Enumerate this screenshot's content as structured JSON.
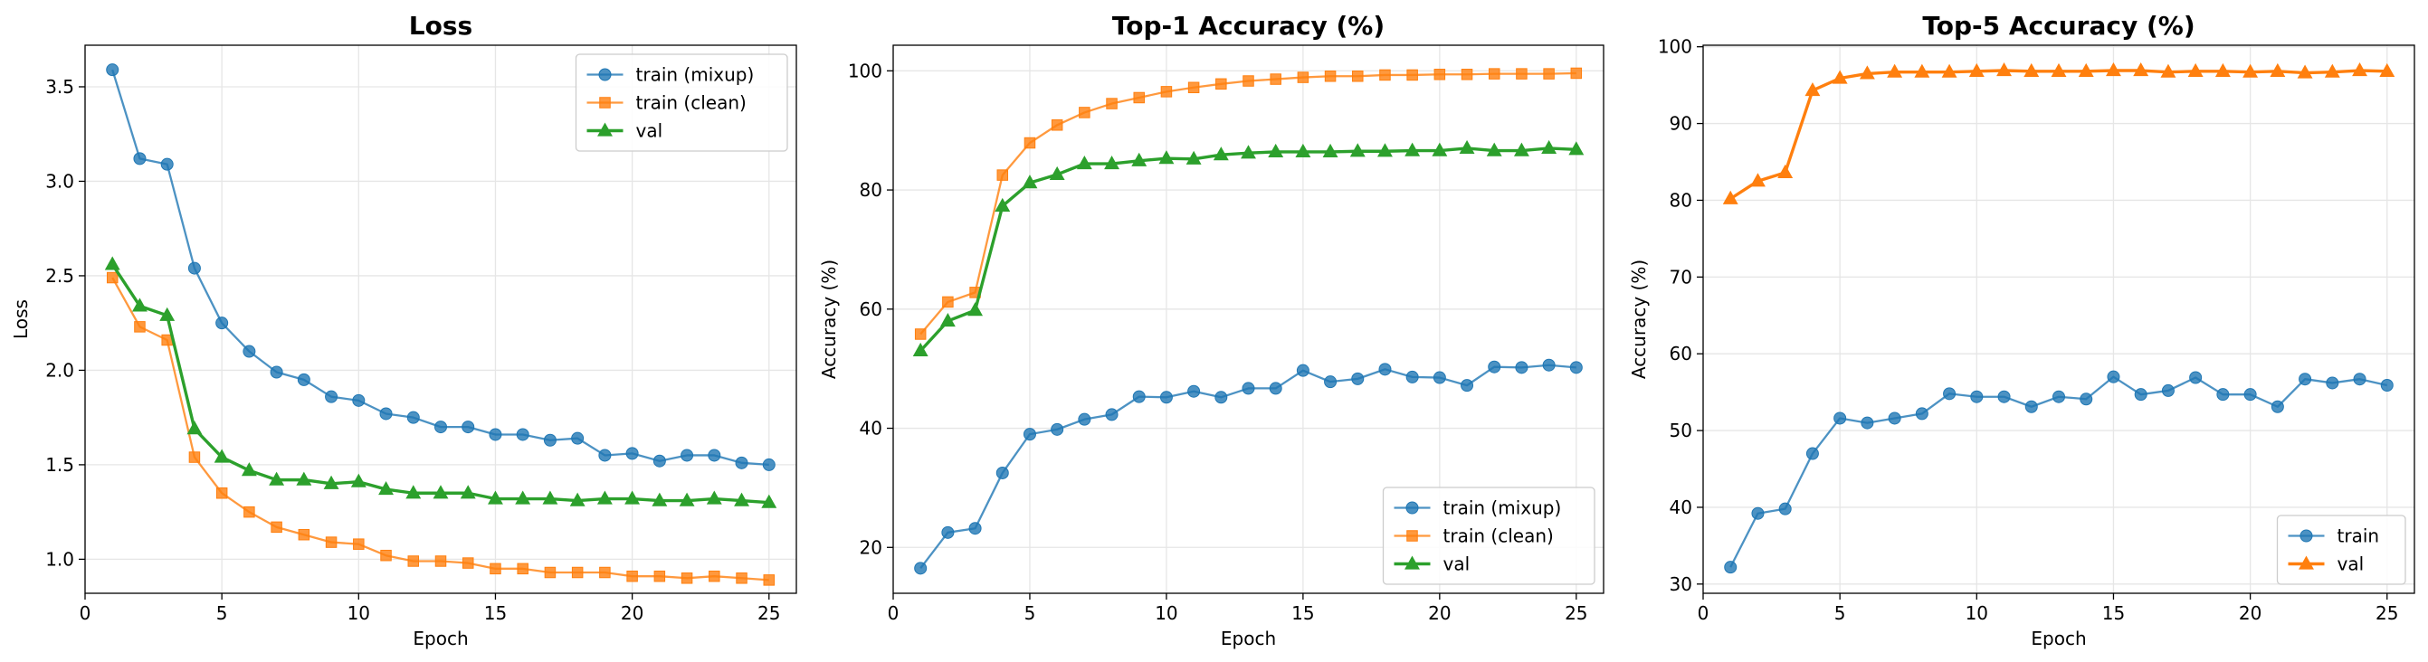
{
  "chart_data": [
    {
      "type": "line",
      "title": "Loss",
      "xlabel": "Epoch",
      "ylabel": "Loss",
      "xlim": [
        0,
        26
      ],
      "ylim": [
        0.82,
        3.72
      ],
      "xticks": [
        0,
        5,
        10,
        15,
        20,
        25
      ],
      "yticks": [
        1.0,
        1.5,
        2.0,
        2.5,
        3.0,
        3.5
      ],
      "ytick_labels": [
        "1.0",
        "1.5",
        "2.0",
        "2.5",
        "3.0",
        "3.5"
      ],
      "grid": true,
      "legend": "top-right",
      "x": [
        1,
        2,
        3,
        4,
        5,
        6,
        7,
        8,
        9,
        10,
        11,
        12,
        13,
        14,
        15,
        16,
        17,
        18,
        19,
        20,
        21,
        22,
        23,
        24,
        25
      ],
      "series": [
        {
          "name": "train (mixup)",
          "color": "#1f77b4",
          "marker": "circle",
          "bold": false,
          "values": [
            3.59,
            3.12,
            3.09,
            2.54,
            2.25,
            2.1,
            1.99,
            1.95,
            1.86,
            1.84,
            1.77,
            1.75,
            1.7,
            1.7,
            1.66,
            1.66,
            1.63,
            1.64,
            1.55,
            1.56,
            1.52,
            1.55,
            1.55,
            1.51,
            1.5
          ]
        },
        {
          "name": "train (clean)",
          "color": "#ff7f0e",
          "marker": "square",
          "bold": false,
          "values": [
            2.49,
            2.23,
            2.16,
            1.54,
            1.35,
            1.25,
            1.17,
            1.13,
            1.09,
            1.08,
            1.02,
            0.99,
            0.99,
            0.98,
            0.95,
            0.95,
            0.93,
            0.93,
            0.93,
            0.91,
            0.91,
            0.9,
            0.91,
            0.9,
            0.89
          ]
        },
        {
          "name": "val",
          "color": "#2ca02c",
          "marker": "triangle",
          "bold": true,
          "values": [
            2.56,
            2.34,
            2.29,
            1.69,
            1.54,
            1.47,
            1.42,
            1.42,
            1.4,
            1.41,
            1.37,
            1.35,
            1.35,
            1.35,
            1.32,
            1.32,
            1.32,
            1.31,
            1.32,
            1.32,
            1.31,
            1.31,
            1.32,
            1.31,
            1.3
          ]
        }
      ]
    },
    {
      "type": "line",
      "title": "Top-1 Accuracy (%)",
      "xlabel": "Epoch",
      "ylabel": "Accuracy (%)",
      "xlim": [
        0,
        26
      ],
      "ylim": [
        12.3,
        104.3
      ],
      "xticks": [
        0,
        5,
        10,
        15,
        20,
        25
      ],
      "yticks": [
        20,
        40,
        60,
        80,
        100
      ],
      "ytick_labels": [
        "20",
        "40",
        "60",
        "80",
        "100"
      ],
      "grid": true,
      "legend": "bottom-right",
      "x": [
        1,
        2,
        3,
        4,
        5,
        6,
        7,
        8,
        9,
        10,
        11,
        12,
        13,
        14,
        15,
        16,
        17,
        18,
        19,
        20,
        21,
        22,
        23,
        24,
        25
      ],
      "series": [
        {
          "name": "train (mixup)",
          "color": "#1f77b4",
          "marker": "circle",
          "bold": false,
          "values": [
            16.5,
            22.5,
            23.2,
            32.5,
            39.0,
            39.8,
            41.5,
            42.3,
            45.3,
            45.2,
            46.2,
            45.2,
            46.7,
            46.7,
            49.7,
            47.8,
            48.3,
            49.9,
            48.6,
            48.5,
            47.2,
            50.3,
            50.2,
            50.6,
            50.2
          ]
        },
        {
          "name": "train (clean)",
          "color": "#ff7f0e",
          "marker": "square",
          "bold": false,
          "values": [
            55.8,
            61.2,
            62.8,
            82.5,
            87.9,
            90.9,
            93.0,
            94.5,
            95.5,
            96.5,
            97.2,
            97.8,
            98.3,
            98.6,
            98.9,
            99.1,
            99.1,
            99.3,
            99.3,
            99.4,
            99.4,
            99.5,
            99.5,
            99.5,
            99.6
          ]
        },
        {
          "name": "val",
          "color": "#2ca02c",
          "marker": "triangle",
          "bold": true,
          "values": [
            53.0,
            58.0,
            59.8,
            77.3,
            81.2,
            82.6,
            84.4,
            84.4,
            84.9,
            85.3,
            85.2,
            85.9,
            86.2,
            86.4,
            86.4,
            86.4,
            86.5,
            86.5,
            86.6,
            86.6,
            87.0,
            86.6,
            86.6,
            87.0,
            86.8
          ]
        }
      ]
    },
    {
      "type": "line",
      "title": "Top-5 Accuracy (%)",
      "xlabel": "Epoch",
      "ylabel": "Accuracy (%)",
      "xlim": [
        0,
        26
      ],
      "ylim": [
        28.8,
        100.2
      ],
      "xticks": [
        0,
        5,
        10,
        15,
        20,
        25
      ],
      "yticks": [
        30,
        40,
        50,
        60,
        70,
        80,
        90,
        100
      ],
      "ytick_labels": [
        "30",
        "40",
        "50",
        "60",
        "70",
        "80",
        "90",
        "100"
      ],
      "grid": true,
      "legend": "bottom-right",
      "x": [
        1,
        2,
        3,
        4,
        5,
        6,
        7,
        8,
        9,
        10,
        11,
        12,
        13,
        14,
        15,
        16,
        17,
        18,
        19,
        20,
        21,
        22,
        23,
        24,
        25
      ],
      "series": [
        {
          "name": "train",
          "color": "#1f77b4",
          "marker": "circle",
          "bold": false,
          "values": [
            32.2,
            39.2,
            39.8,
            47.0,
            51.6,
            51.0,
            51.6,
            52.2,
            54.8,
            54.4,
            54.4,
            53.1,
            54.4,
            54.1,
            57.0,
            54.7,
            55.2,
            56.9,
            54.7,
            54.7,
            53.1,
            56.7,
            56.2,
            56.7,
            55.9
          ]
        },
        {
          "name": "val",
          "color": "#ff7f0e",
          "marker": "triangle",
          "bold": true,
          "values": [
            80.2,
            82.5,
            83.6,
            94.3,
            95.9,
            96.5,
            96.7,
            96.7,
            96.7,
            96.8,
            96.9,
            96.8,
            96.8,
            96.8,
            96.9,
            96.9,
            96.7,
            96.8,
            96.8,
            96.7,
            96.8,
            96.6,
            96.7,
            96.9,
            96.8
          ]
        }
      ]
    }
  ]
}
